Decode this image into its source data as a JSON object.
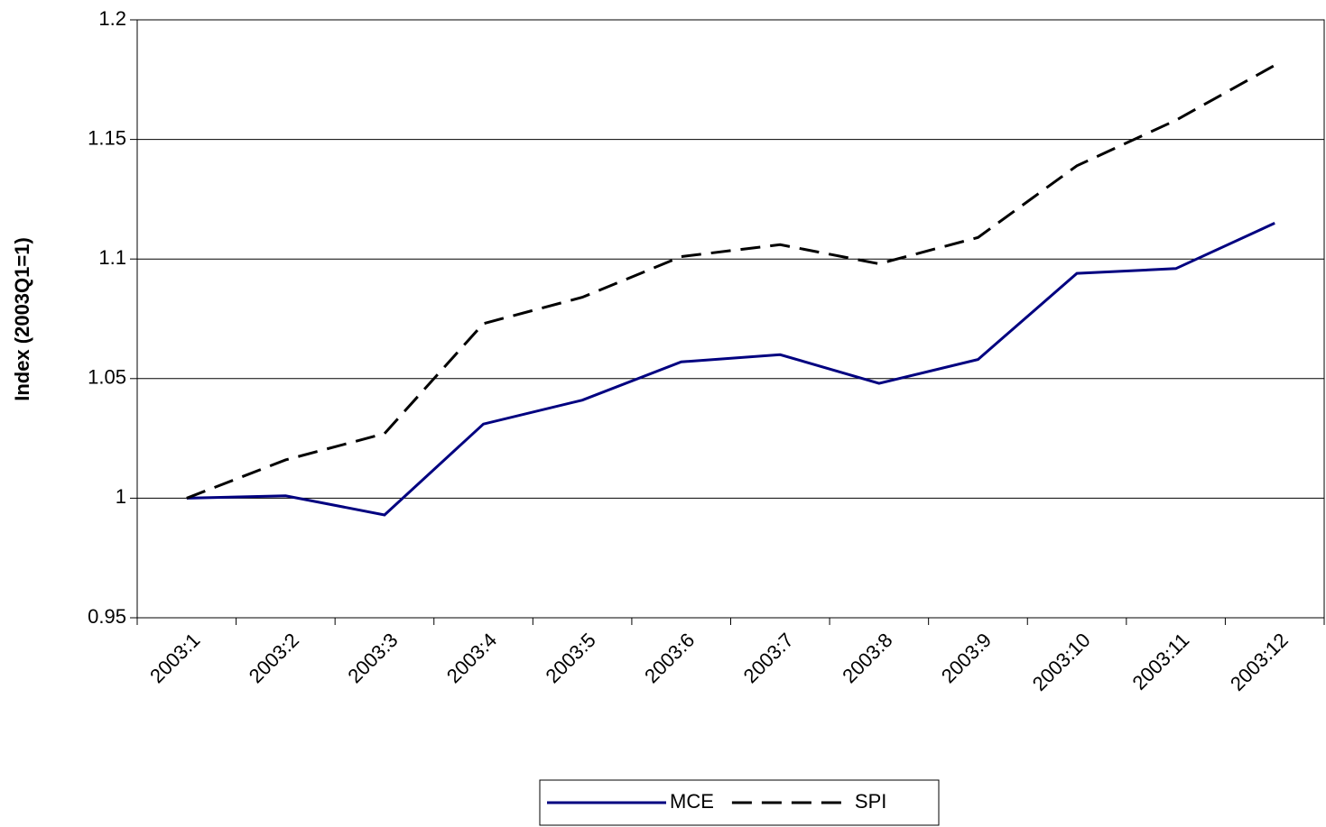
{
  "chart_data": {
    "type": "line",
    "y_label": "Index (2003Q1=1)",
    "categories": [
      "2003:1",
      "2003:2",
      "2003:3",
      "2003:4",
      "2003:5",
      "2003:6",
      "2003:7",
      "2003:8",
      "2003:9",
      "2003:10",
      "2003:11",
      "2003:12"
    ],
    "series": [
      {
        "name": "MCE",
        "color": "#000080",
        "dash": false,
        "values": [
          1.0,
          1.001,
          0.993,
          1.031,
          1.041,
          1.057,
          1.06,
          1.048,
          1.058,
          1.094,
          1.096,
          1.115
        ]
      },
      {
        "name": "SPI",
        "color": "#000000",
        "dash": true,
        "values": [
          1.0,
          1.016,
          1.027,
          1.073,
          1.084,
          1.101,
          1.106,
          1.098,
          1.109,
          1.139,
          1.158,
          1.181
        ]
      }
    ],
    "ylim": [
      0.95,
      1.2
    ],
    "yticks": [
      0.95,
      1,
      1.05,
      1.1,
      1.15,
      1.2
    ],
    "grid": true,
    "legend": "bottom"
  }
}
